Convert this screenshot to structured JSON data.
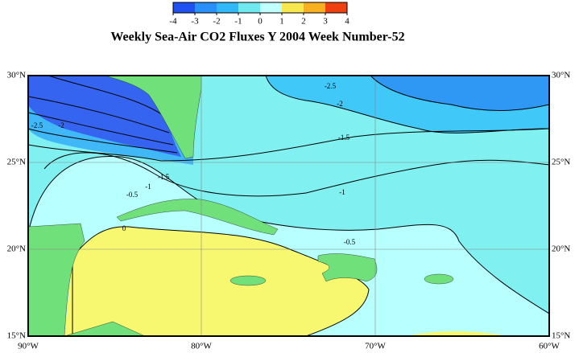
{
  "colorbar": {
    "ticks": [
      -4,
      -3,
      -2,
      -1,
      0,
      1,
      2,
      3,
      4
    ]
  },
  "title": "Weekly Sea-Air CO2 Fluxes Y 2004 Week Number-52",
  "lat_labels": [
    "30°N",
    "25°N",
    "20°N",
    "15°N"
  ],
  "lon_labels": [
    "90°W",
    "80°W",
    "70°W",
    "60°W"
  ],
  "contour_labels": [
    "-2.5",
    "-2",
    "-1.5",
    "-1",
    "-0.5",
    "0",
    "-2.5",
    "-2",
    "-1.5",
    "-1",
    "-0.5"
  ]
}
